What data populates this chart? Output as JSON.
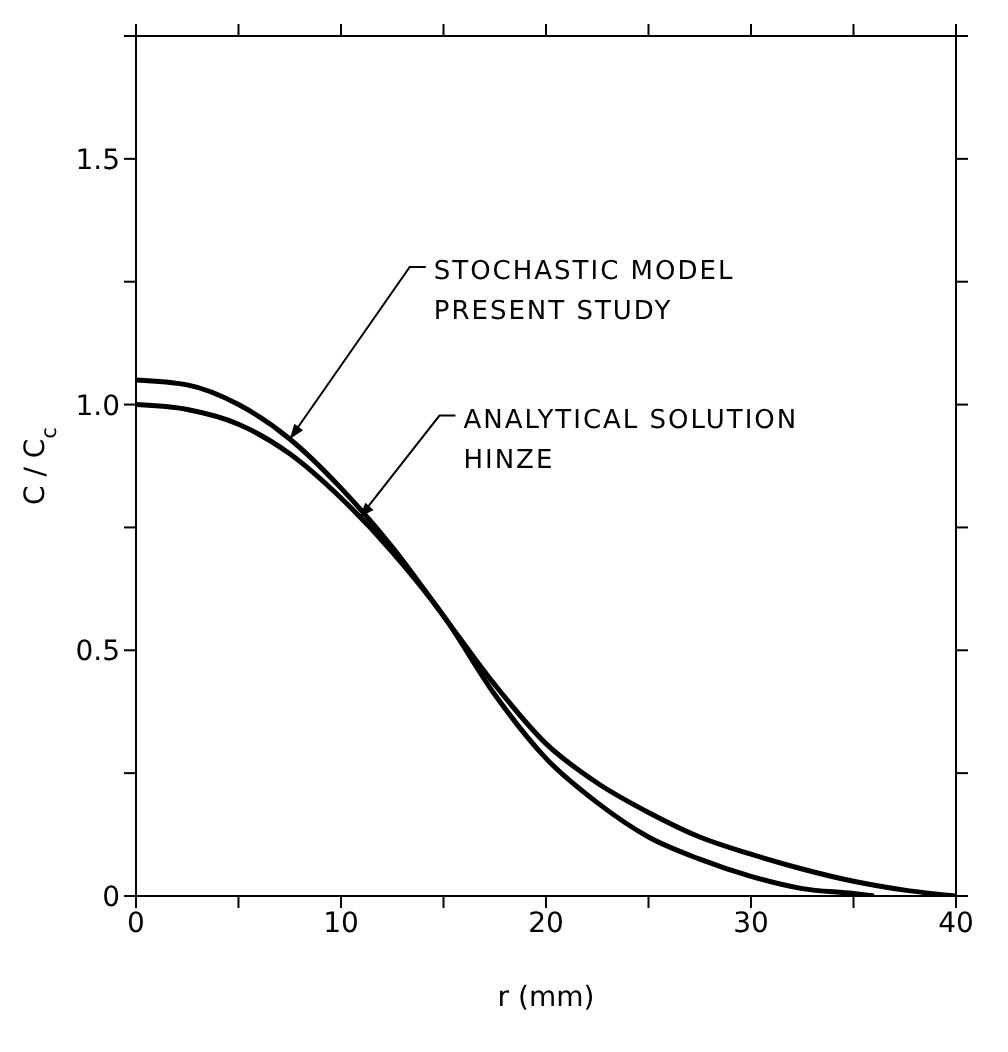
{
  "chart_data": {
    "type": "line",
    "xlabel": "r (mm)",
    "ylabel": "C / C$_{c}$",
    "xlim": [
      0,
      40
    ],
    "xticks": [
      0,
      {
        "value": 5,
        "label": null
      },
      10,
      {
        "value": 15,
        "label": null
      },
      20,
      {
        "value": 25,
        "label": null
      },
      30,
      {
        "value": 35,
        "label": null
      },
      40
    ],
    "ylim": [
      0,
      1.75
    ],
    "yticks": [
      0,
      {
        "value": 0.25,
        "label": null
      },
      0.5,
      {
        "value": 0.75,
        "label": null
      },
      {
        "value": 1,
        "label": "1.0"
      },
      {
        "value": 1.25,
        "label": null
      },
      1.5,
      {
        "value": 1.75,
        "label": null
      }
    ],
    "legend": false,
    "marker": "none",
    "line_style": "solid",
    "series": [
      {
        "color": "#000000",
        "x": [
          0,
          2.5,
          5,
          7.5,
          10,
          12.5,
          15,
          17.5,
          20,
          22.5,
          25,
          27.5,
          30,
          32.5,
          35,
          37.5,
          40
        ],
        "values": [
          1.05,
          1.04,
          1.0,
          0.93,
          0.83,
          0.71,
          0.57,
          0.43,
          0.31,
          0.23,
          0.17,
          0.12,
          0.085,
          0.055,
          0.03,
          0.012,
          0
        ]
      },
      {
        "color": "#000000",
        "x": [
          0,
          2.5,
          5,
          7.5,
          10,
          12.5,
          15,
          17.5,
          20,
          22.5,
          25,
          27.5,
          30,
          32.5,
          35,
          36
        ],
        "values": [
          1.0,
          0.99,
          0.96,
          0.9,
          0.81,
          0.7,
          0.57,
          0.41,
          0.28,
          0.19,
          0.12,
          0.075,
          0.04,
          0.015,
          0.005,
          0
        ]
      }
    ],
    "annotations": [
      {
        "text": "STOCHASTIC MODEL\nPRESENT STUDY",
        "x": 7.5,
        "y": 0.93
      },
      {
        "text": "ANALYTICAL SOLUTION\nHINZE",
        "x": 10.9,
        "y": 0.77
      }
    ]
  }
}
